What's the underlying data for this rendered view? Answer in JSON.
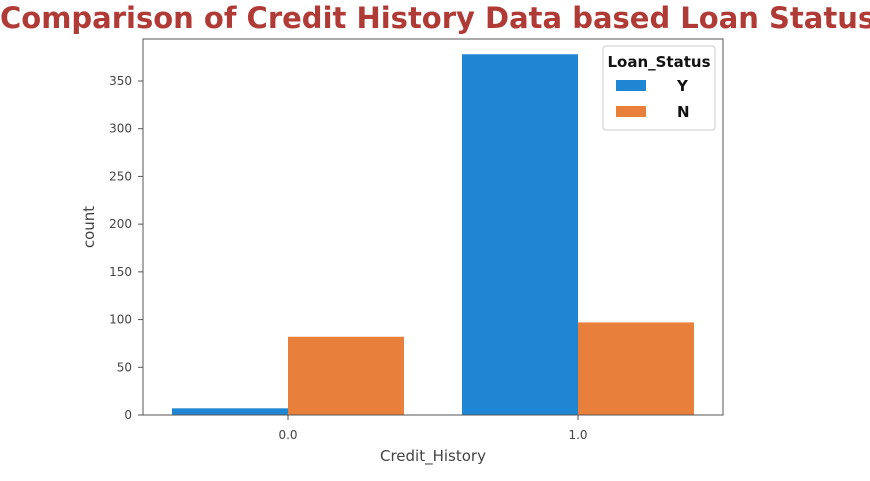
{
  "chart_data": {
    "type": "bar",
    "title": "Comparison of Credit History Data based Loan Status",
    "xlabel": "Credit_History",
    "ylabel": "count",
    "categories": [
      "0.0",
      "1.0"
    ],
    "series": [
      {
        "name": "Y",
        "values": [
          7,
          378
        ],
        "color": "#1f86d3"
      },
      {
        "name": "N",
        "values": [
          82,
          97
        ],
        "color": "#e8803c"
      }
    ],
    "ylim": [
      0,
      394
    ],
    "yticks": [
      0,
      50,
      100,
      150,
      200,
      250,
      300,
      350
    ],
    "legend": {
      "title": "Loan_Status",
      "position": "top-right"
    },
    "grid": false
  }
}
